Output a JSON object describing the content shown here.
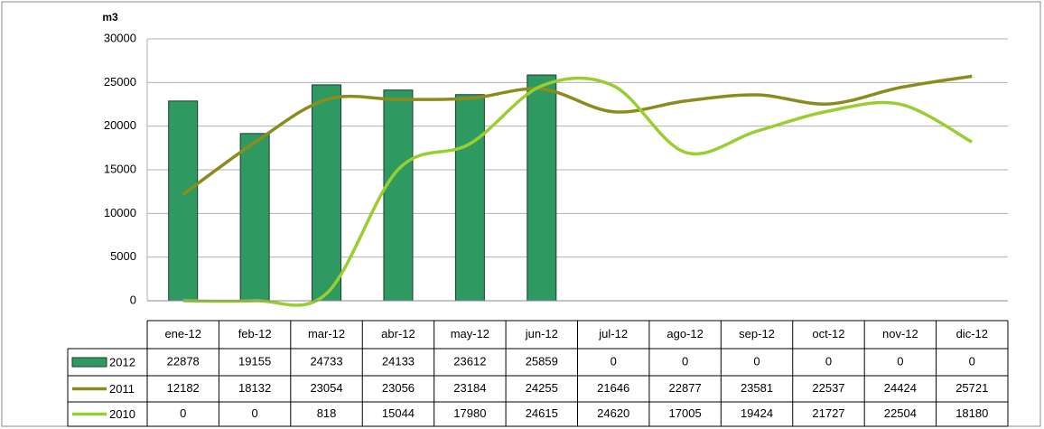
{
  "chart_data": {
    "type": "bar-line-table",
    "y_label": "m3",
    "categories": [
      "ene-12",
      "feb-12",
      "mar-12",
      "abr-12",
      "may-12",
      "jun-12",
      "jul-12",
      "ago-12",
      "sep-12",
      "oct-12",
      "nov-12",
      "dic-12"
    ],
    "series": [
      {
        "name": "2012",
        "type": "bar",
        "color": "#2e9a62",
        "values": [
          22878,
          19155,
          24733,
          24133,
          23612,
          25859,
          0,
          0,
          0,
          0,
          0,
          0
        ]
      },
      {
        "name": "2011",
        "type": "line",
        "color": "#8c8c1e",
        "values": [
          12182,
          18132,
          23054,
          23056,
          23184,
          24255,
          21646,
          22877,
          23581,
          22537,
          24424,
          25721
        ]
      },
      {
        "name": "2010",
        "type": "line",
        "color": "#9acd32",
        "values": [
          0,
          0,
          818,
          15044,
          17980,
          24615,
          24620,
          17005,
          19424,
          21727,
          22504,
          18180
        ]
      }
    ],
    "ylim": [
      0,
      30000
    ],
    "yticks": [
      0,
      5000,
      10000,
      15000,
      20000,
      25000,
      30000
    ],
    "grid": true
  }
}
